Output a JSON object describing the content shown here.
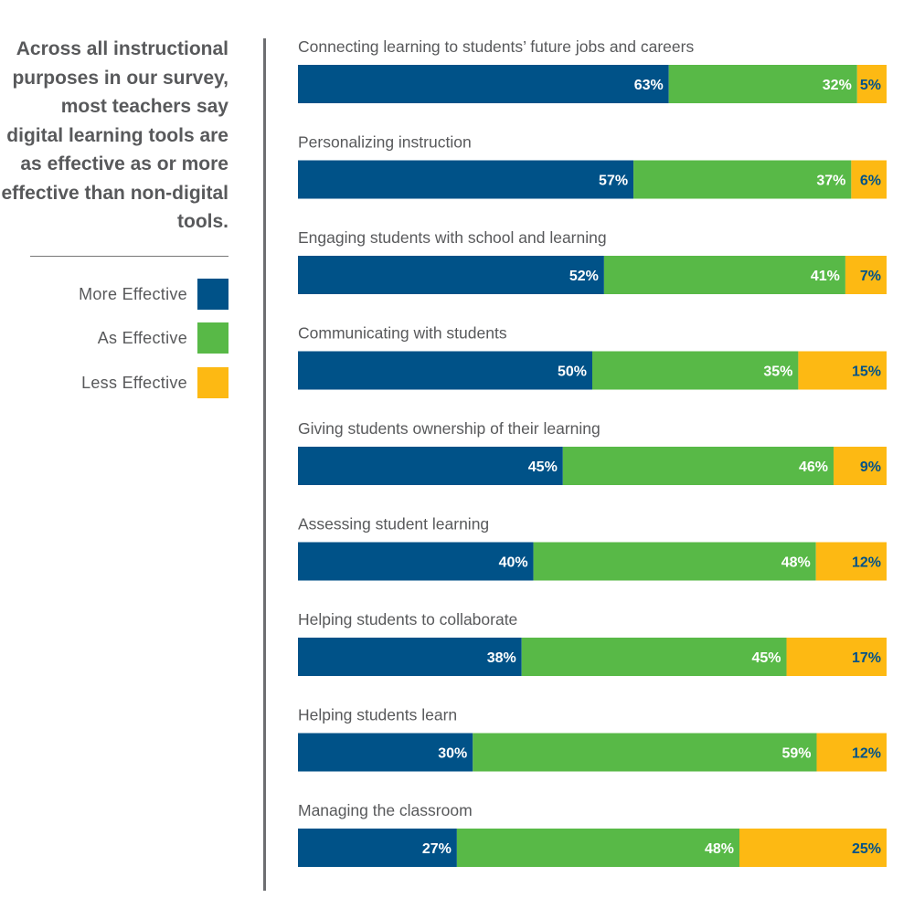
{
  "intro_text": "Across all instructional purposes in our survey, most teachers say digital learning tools are as effective as or more effective than non-digital tools.",
  "chart_data": {
    "type": "bar",
    "orientation": "horizontal-stacked-100",
    "categories": [
      "Connecting learning to students’ future jobs and careers",
      "Personalizing instruction",
      "Engaging students with school and learning",
      "Communicating with students",
      "Giving students ownership of their learning",
      "Assessing student learning",
      "Helping students to collaborate",
      "Helping students learn",
      "Managing the classroom"
    ],
    "series": [
      {
        "name": "More Effective",
        "color": "#005288",
        "label_color": "#ffffff",
        "values": [
          63,
          57,
          52,
          50,
          45,
          40,
          38,
          30,
          27
        ]
      },
      {
        "name": "As Effective",
        "color": "#58b947",
        "label_color": "#ffffff",
        "values": [
          32,
          37,
          41,
          35,
          46,
          48,
          45,
          59,
          48
        ]
      },
      {
        "name": "Less Effective",
        "color": "#fdb913",
        "label_color": "#005288",
        "values": [
          5,
          6,
          7,
          15,
          9,
          12,
          17,
          12,
          25
        ]
      }
    ],
    "value_suffix": "%",
    "legend_position": "left",
    "grid": false
  }
}
